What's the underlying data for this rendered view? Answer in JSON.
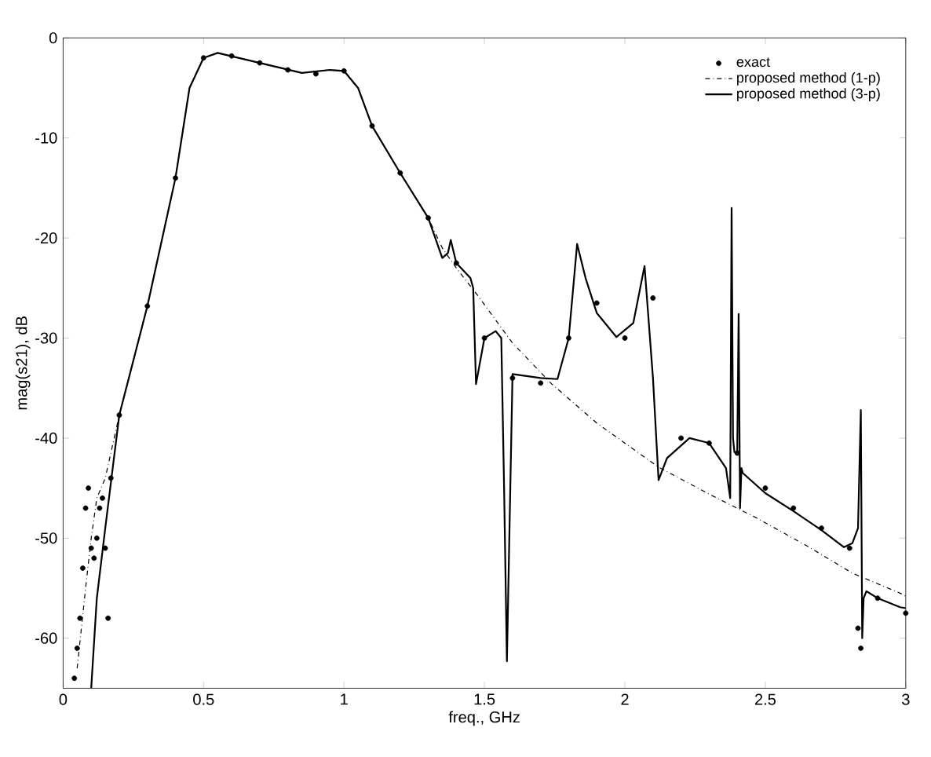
{
  "chart_data": {
    "type": "line",
    "xlabel": "freq., GHz",
    "ylabel": "mag(s21), dB",
    "xlim": [
      0,
      3
    ],
    "ylim": [
      -65,
      0
    ],
    "xticks": [
      0,
      0.5,
      1,
      1.5,
      2,
      2.5,
      3
    ],
    "yticks": [
      -60,
      -50,
      -40,
      -30,
      -20,
      -10,
      0
    ],
    "legend": "top right",
    "marker": "circle",
    "series": [
      {
        "name": "exact",
        "type": "scatter",
        "color": "#000000",
        "x": [
          0.04,
          0.05,
          0.06,
          0.07,
          0.08,
          0.09,
          0.1,
          0.11,
          0.12,
          0.13,
          0.14,
          0.15,
          0.16,
          0.17,
          0.2,
          0.3,
          0.4,
          0.5,
          0.6,
          0.7,
          0.8,
          0.9,
          1.0,
          1.1,
          1.2,
          1.3,
          1.4,
          1.5,
          1.6,
          1.7,
          1.8,
          1.9,
          2.0,
          2.1,
          2.2,
          2.3,
          2.4,
          2.5,
          2.6,
          2.7,
          2.8,
          2.83,
          2.84,
          2.9,
          3.0
        ],
        "values": [
          -64,
          -61,
          -58,
          -53,
          -47,
          -45,
          -51,
          -52,
          -50,
          -47,
          -46,
          -51,
          -58,
          -44,
          -37.7,
          -26.8,
          -14,
          -2,
          -1.8,
          -2.5,
          -3.2,
          -3.6,
          -3.3,
          -8.8,
          -13.5,
          -18,
          -22.5,
          -30,
          -34,
          -34.5,
          -30,
          -26.5,
          -30,
          -26,
          -40,
          -40.5,
          -41.5,
          -45,
          -47,
          -49,
          -51,
          -59,
          -61,
          -56,
          -57.5
        ]
      },
      {
        "name": "proposed method (1-p)",
        "marker": "none",
        "line_style": "dashdotted",
        "color": "#000000",
        "x": [
          0.05,
          0.08,
          0.1,
          0.12,
          0.15,
          0.2,
          0.3,
          0.4,
          0.45,
          0.5,
          0.55,
          0.7,
          0.85,
          0.95,
          1.0,
          1.05,
          1.1,
          1.2,
          1.3,
          1.35,
          1.4,
          1.48,
          1.6,
          1.74,
          1.9,
          2.12,
          2.3,
          2.47,
          2.65,
          2.81,
          2.98,
          3.0
        ],
        "values": [
          -63,
          -55,
          -50,
          -46,
          -44,
          -37.7,
          -26.8,
          -14,
          -5,
          -2,
          -1.5,
          -2.5,
          -3.5,
          -3.2,
          -3.3,
          -5,
          -8.8,
          -13.5,
          -18,
          -21,
          -23,
          -25.9,
          -30.5,
          -34.6,
          -38.5,
          -42.9,
          -45.6,
          -48,
          -50.8,
          -53.5,
          -55.5,
          -55.8
        ]
      },
      {
        "name": "proposed method (3-p)",
        "marker": "none",
        "line_style": "solid",
        "color": "#000000",
        "x": [
          0.1,
          0.12,
          0.15,
          0.2,
          0.3,
          0.4,
          0.45,
          0.5,
          0.55,
          0.7,
          0.85,
          0.95,
          1.0,
          1.05,
          1.1,
          1.2,
          1.3,
          1.35,
          1.37,
          1.38,
          1.4,
          1.45,
          1.46,
          1.47,
          1.5,
          1.54,
          1.56,
          1.57,
          1.58,
          1.6,
          1.65,
          1.7,
          1.76,
          1.8,
          1.83,
          1.86,
          1.9,
          1.97,
          2.03,
          2.07,
          2.1,
          2.12,
          2.15,
          2.23,
          2.3,
          2.36,
          2.375,
          2.38,
          2.385,
          2.39,
          2.4,
          2.405,
          2.41,
          2.415,
          2.42,
          2.5,
          2.6,
          2.7,
          2.78,
          2.81,
          2.83,
          2.84,
          2.845,
          2.85,
          2.86,
          2.9,
          2.98,
          3.0
        ],
        "values": [
          -65,
          -56,
          -49,
          -37.7,
          -26.8,
          -14,
          -5,
          -2,
          -1.5,
          -2.5,
          -3.5,
          -3.2,
          -3.3,
          -5,
          -8.8,
          -13.5,
          -18,
          -22,
          -21.5,
          -20.2,
          -22.5,
          -24,
          -25,
          -34.6,
          -30,
          -29.3,
          -30,
          -45,
          -62.3,
          -33.6,
          -33.8,
          -34,
          -34.1,
          -30,
          -20.6,
          -24,
          -27.5,
          -29.9,
          -28.5,
          -22.8,
          -34,
          -44.2,
          -42,
          -40,
          -40.5,
          -43,
          -46,
          -17,
          -40,
          -41.4,
          -41.5,
          -27.6,
          -47,
          -43,
          -43.5,
          -45.5,
          -47.3,
          -49.2,
          -50.9,
          -50.5,
          -49,
          -37.2,
          -60,
          -56,
          -55.3,
          -56,
          -56.9,
          -57
        ]
      }
    ]
  }
}
